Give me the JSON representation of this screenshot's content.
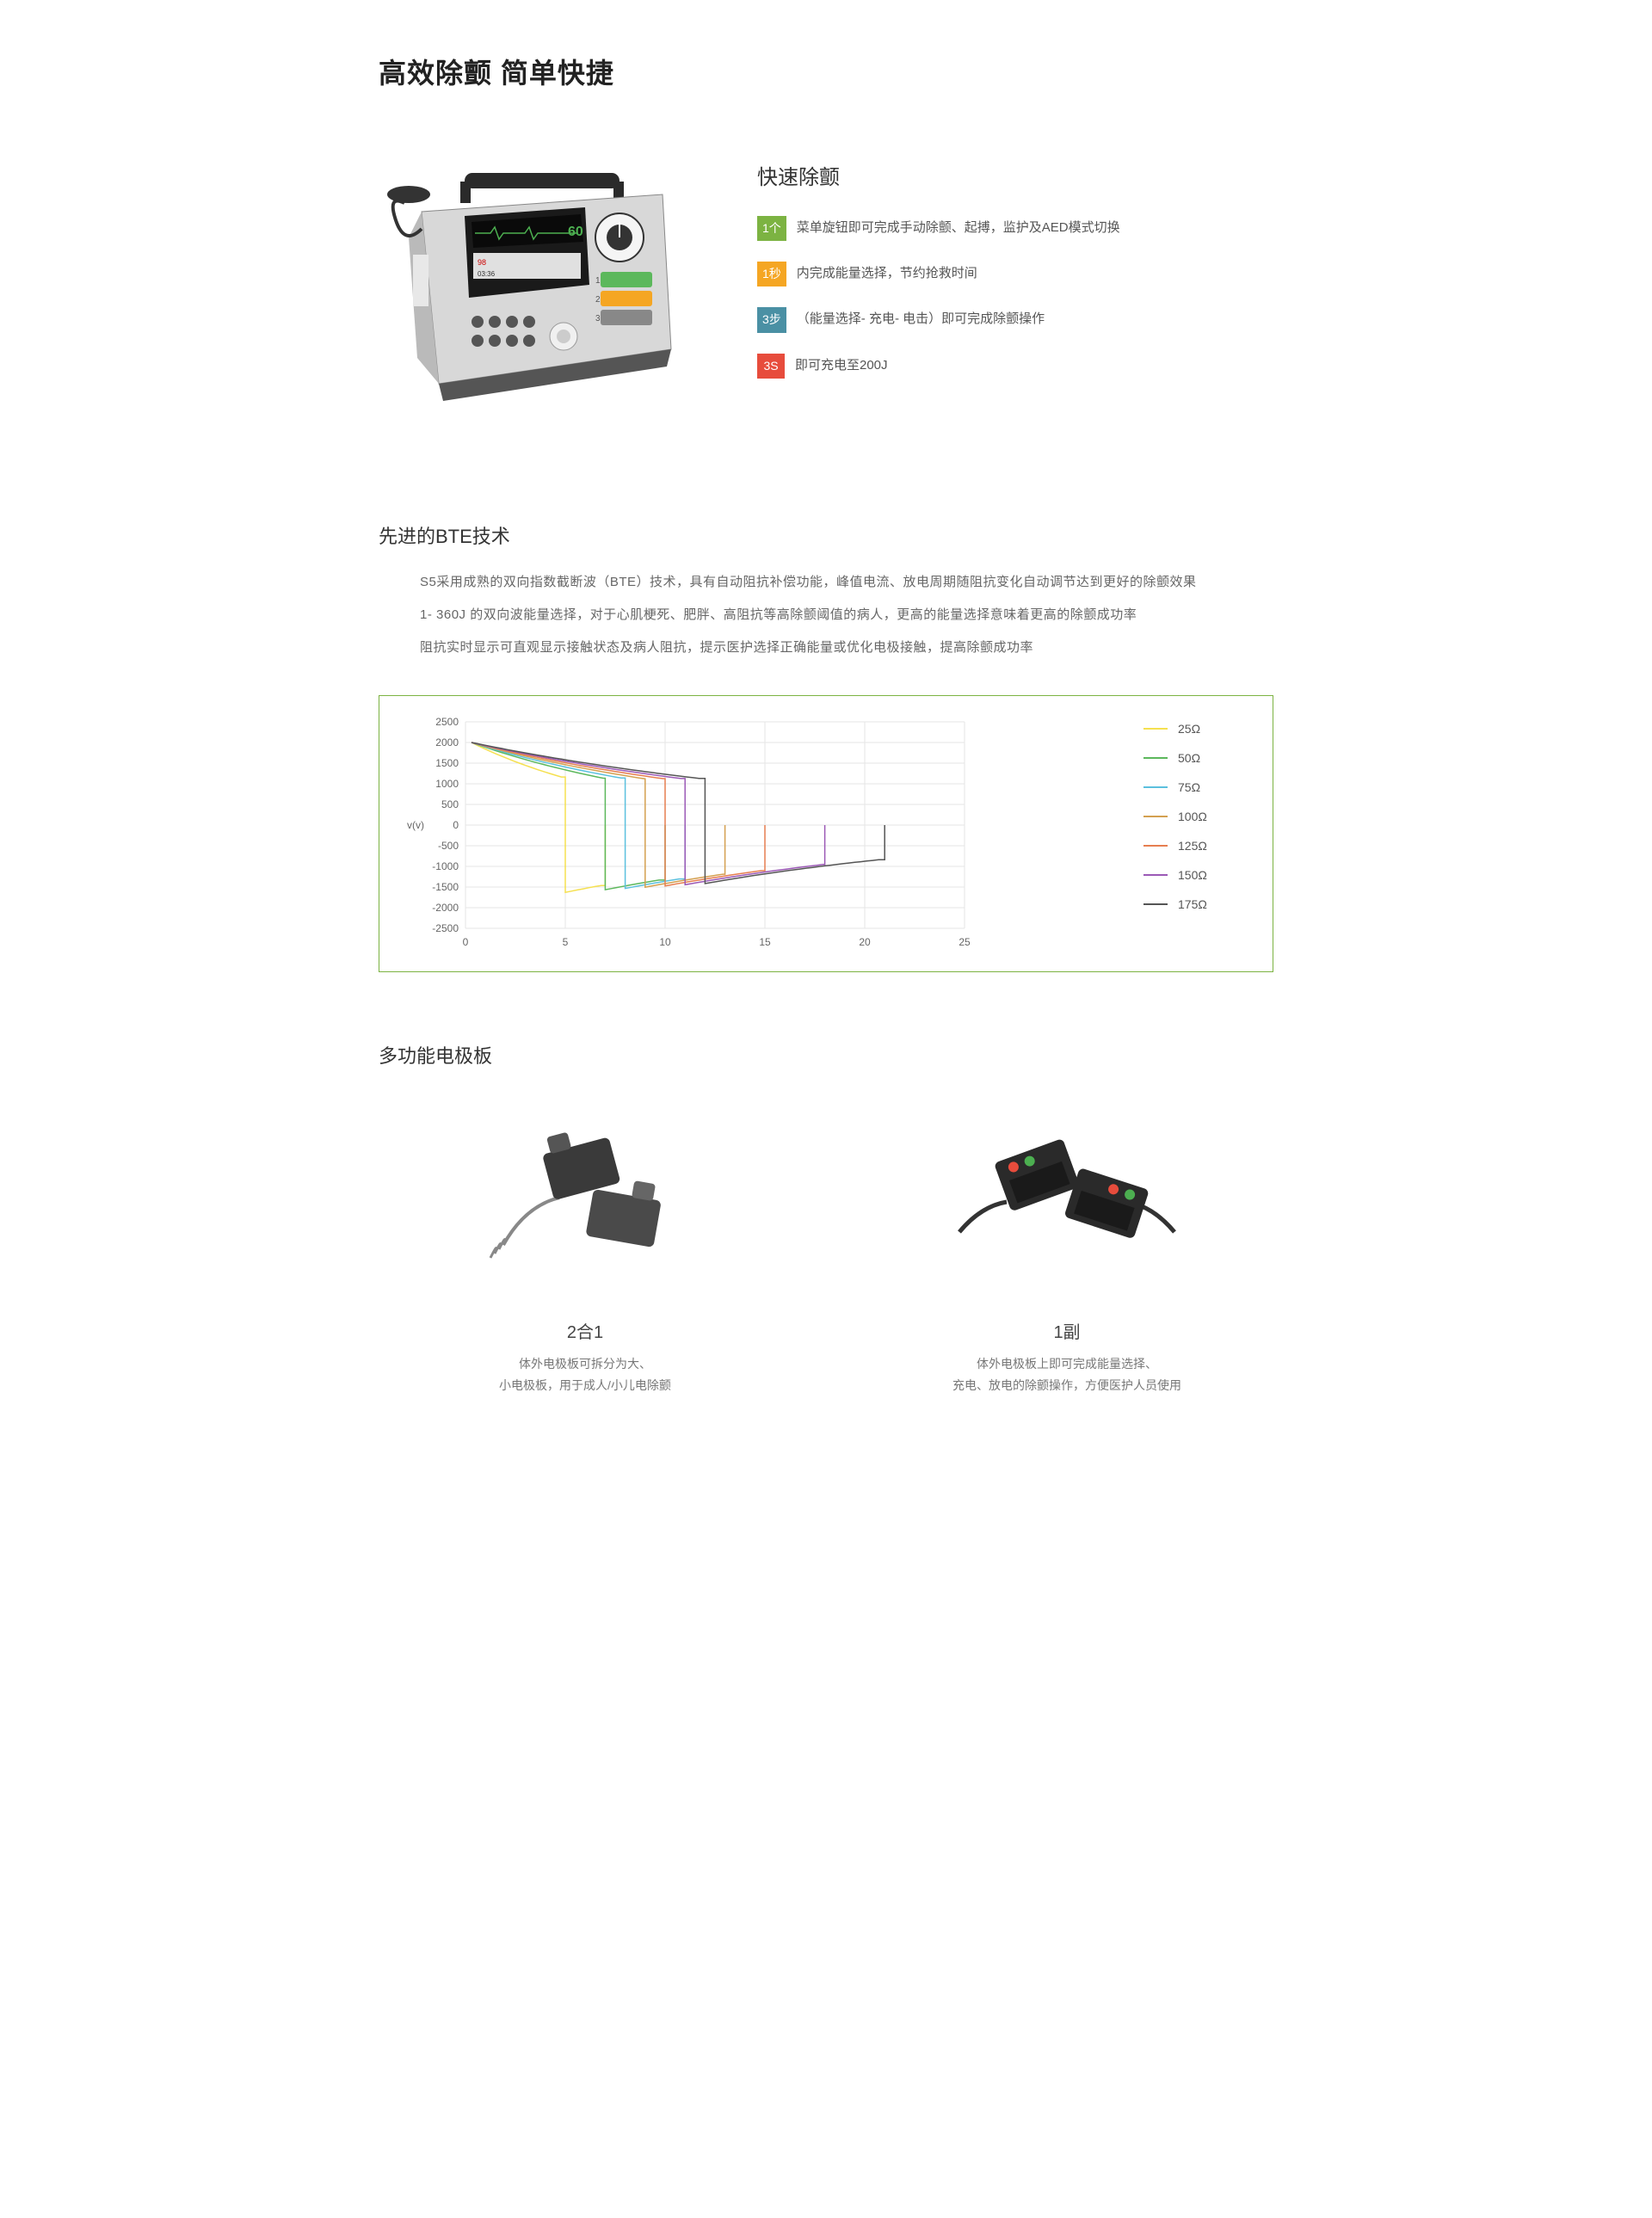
{
  "mainTitle": "高效除颤  简单快捷",
  "featuresTitle": "快速除颤",
  "features": [
    {
      "badge": "1个",
      "badgeClass": "badge-green",
      "text": "菜单旋钮即可完成手动除颤、起搏，监护及AED模式切换"
    },
    {
      "badge": "1秒",
      "badgeClass": "badge-orange",
      "text": "内完成能量选择，节约抢救时间"
    },
    {
      "badge": "3步",
      "badgeClass": "badge-blue",
      "text": "（能量选择- 充电- 电击）即可完成除颤操作"
    },
    {
      "badge": "3S",
      "badgeClass": "badge-red",
      "text": "即可充电至200J"
    }
  ],
  "bteTitle": "先进的BTE技术",
  "bteParas": [
    "S5采用成熟的双向指数截断波（BTE）技术，具有自动阻抗补偿功能，峰值电流、放电周期随阻抗变化自动调节达到更好的除颤效果",
    "1- 360J 的双向波能量选择，对于心肌梗死、肥胖、高阻抗等高除颤阈值的病人，更高的能量选择意味着更高的除颤成功率",
    "阻抗实时显示可直观显示接触状态及病人阻抗，提示医护选择正确能量或优化电极接触，提高除颤成功率"
  ],
  "chart": {
    "yLabel": "v(v)",
    "yTicks": [
      "2500",
      "2000",
      "1500",
      "1000",
      "500",
      "0",
      "-500",
      "-1000",
      "-1500",
      "-2000",
      "-2500"
    ],
    "xTicks": [
      "0",
      "5",
      "10",
      "15",
      "20",
      "25"
    ],
    "legend": [
      {
        "label": "25Ω",
        "color": "#f5e050"
      },
      {
        "label": "50Ω",
        "color": "#5cb85c"
      },
      {
        "label": "75Ω",
        "color": "#5bc0de"
      },
      {
        "label": "100Ω",
        "color": "#d4a050"
      },
      {
        "label": "125Ω",
        "color": "#e67e50"
      },
      {
        "label": "150Ω",
        "color": "#9b59b6"
      },
      {
        "label": "175Ω",
        "color": "#555555"
      }
    ],
    "series": [
      {
        "color": "#f5e050",
        "drop": 5,
        "neg": 7
      },
      {
        "color": "#5cb85c",
        "drop": 7,
        "neg": 10
      },
      {
        "color": "#5bc0de",
        "drop": 8,
        "neg": 11
      },
      {
        "color": "#d4a050",
        "drop": 9,
        "neg": 13
      },
      {
        "color": "#e67e50",
        "drop": 10,
        "neg": 15
      },
      {
        "color": "#9b59b6",
        "drop": 11,
        "neg": 18
      },
      {
        "color": "#555555",
        "drop": 12,
        "neg": 21
      }
    ]
  },
  "paddlesTitle": "多功能电极板",
  "paddles": [
    {
      "title": "2合1",
      "desc": "体外电极板可拆分为大、\n小电极板，用于成人/小儿电除颤"
    },
    {
      "title": "1副",
      "desc": "体外电极板上即可完成能量选择、\n充电、放电的除颤操作，方便医护人员使用"
    }
  ]
}
